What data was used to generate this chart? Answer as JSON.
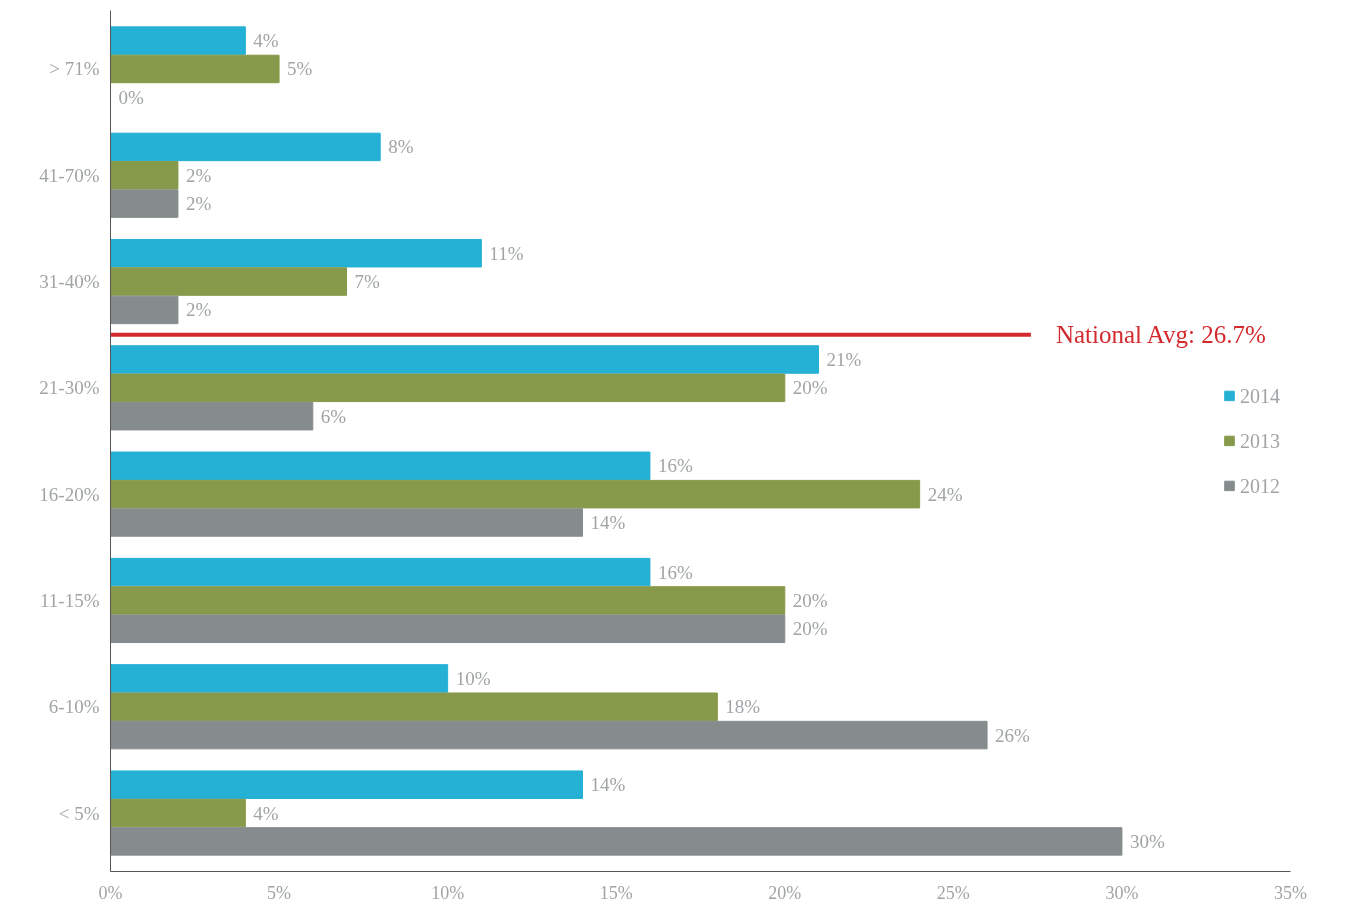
{
  "chart_data": {
    "type": "bar",
    "orientation": "horizontal",
    "categories": [
      "> 71%",
      "41-70%",
      "31-40%",
      "21-30%",
      "16-20%",
      "11-15%",
      "6-10%",
      "< 5%"
    ],
    "series": [
      {
        "name": "2014",
        "color": "#25b0d5",
        "values": [
          4,
          8,
          11,
          21,
          16,
          16,
          10,
          14
        ],
        "value_labels": [
          "4%",
          "8%",
          "11%",
          "21%",
          "16%",
          "16%",
          "10%",
          "14%"
        ]
      },
      {
        "name": "2013",
        "color": "#87994a",
        "values": [
          5,
          2,
          7,
          20,
          24,
          20,
          18,
          4
        ],
        "value_labels": [
          "5%",
          "2%",
          "7%",
          "20%",
          "24%",
          "20%",
          "18%",
          "4%"
        ]
      },
      {
        "name": "2012",
        "color": "#868c8d",
        "values": [
          0,
          2,
          2,
          6,
          14,
          20,
          26,
          30
        ],
        "value_labels": [
          "0%",
          "2%",
          "2%",
          "6%",
          "14%",
          "20%",
          "26%",
          "30%"
        ]
      }
    ],
    "xlim": [
      0,
      35
    ],
    "xticks": [
      {
        "value": 0,
        "label": "0%"
      },
      {
        "value": 5,
        "label": "5%"
      },
      {
        "value": 10,
        "label": "10%"
      },
      {
        "value": 15,
        "label": "15%"
      },
      {
        "value": 20,
        "label": "20%"
      },
      {
        "value": 25,
        "label": "25%"
      },
      {
        "value": 30,
        "label": "30%"
      },
      {
        "value": 35,
        "label": "35%"
      }
    ],
    "annotations": [
      "National Avg: 26.7%"
    ],
    "grid": false,
    "legend": "right"
  }
}
